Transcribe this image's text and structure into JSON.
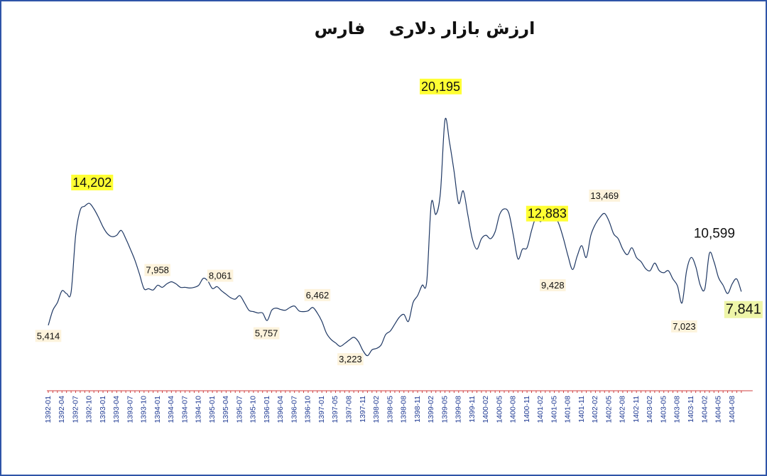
{
  "chart_data": {
    "type": "line",
    "title": "ارزش بازار دلاری    فارس",
    "categories": [
      "1392-01",
      null,
      null,
      "1392-04",
      null,
      null,
      "1392-07",
      null,
      null,
      "1392-10",
      null,
      null,
      "1393-01",
      null,
      null,
      "1393-04",
      null,
      null,
      "1393-07",
      null,
      null,
      "1393-10",
      null,
      null,
      "1394-01",
      null,
      null,
      "1394-04",
      null,
      null,
      "1394-07",
      null,
      null,
      "1394-10",
      null,
      null,
      "1395-01",
      null,
      null,
      "1395-04",
      null,
      null,
      "1395-07",
      null,
      null,
      "1395-10",
      null,
      null,
      "1396-01",
      null,
      null,
      "1396-04",
      null,
      null,
      "1396-07",
      null,
      null,
      "1396-10",
      null,
      null,
      "1397-01",
      null,
      null,
      "1397-05",
      null,
      null,
      "1397-08",
      null,
      null,
      "1397-11",
      null,
      null,
      "1398-02",
      null,
      null,
      "1398-05",
      null,
      null,
      "1398-08",
      null,
      null,
      "1398-11",
      null,
      null,
      "1399-02",
      null,
      null,
      "1399-05",
      null,
      null,
      "1399-08",
      null,
      null,
      "1399-11",
      null,
      null,
      "1400-02",
      null,
      null,
      "1400-05",
      null,
      null,
      "1400-08",
      null,
      null,
      "1400-11",
      null,
      null,
      "1401-02",
      null,
      null,
      "1401-05",
      null,
      null,
      "1401-08",
      null,
      null,
      "1401-11",
      null,
      null,
      "1402-02",
      null,
      null,
      "1402-05",
      null,
      null,
      "1402-08",
      null,
      null,
      "1402-11",
      null,
      null,
      "1403-02",
      null,
      null,
      "1403-05",
      null,
      null,
      "1403-08",
      null,
      null,
      "1403-11",
      null,
      null,
      "1404-02",
      null,
      null,
      "1404-05",
      null,
      null,
      "1404-08",
      null,
      null
    ],
    "values": [
      5414,
      6500,
      7050,
      7900,
      7700,
      7800,
      11900,
      13700,
      14000,
      14202,
      13800,
      13200,
      12500,
      12000,
      11800,
      11900,
      12250,
      11650,
      10900,
      10100,
      9100,
      8050,
      8050,
      7958,
      8300,
      8150,
      8400,
      8550,
      8400,
      8150,
      8150,
      8100,
      8150,
      8300,
      8800,
      8600,
      8061,
      8200,
      7900,
      7650,
      7400,
      7300,
      7550,
      7050,
      6500,
      6400,
      6300,
      6300,
      5757,
      6500,
      6650,
      6550,
      6500,
      6700,
      6800,
      6450,
      6400,
      6462,
      6700,
      6300,
      5700,
      4850,
      4400,
      4150,
      3900,
      4100,
      4350,
      4550,
      4250,
      3600,
      3223,
      3650,
      3750,
      4000,
      4750,
      5000,
      5500,
      6000,
      6200,
      5700,
      7050,
      7550,
      8300,
      8550,
      14200,
      13400,
      14950,
      20195,
      18600,
      16500,
      14200,
      15100,
      13400,
      11650,
      10900,
      11650,
      11900,
      11650,
      12150,
      13400,
      13800,
      13500,
      11900,
      10200,
      10900,
      11000,
      12250,
      13200,
      12883,
      13500,
      13100,
      13300,
      12700,
      11650,
      10400,
      9428,
      10400,
      11150,
      10300,
      11900,
      12700,
      13200,
      13469,
      12900,
      12000,
      11650,
      10900,
      10500,
      11000,
      10300,
      10000,
      9500,
      9350,
      9900,
      9350,
      9200,
      9350,
      8750,
      8250,
      7023,
      9350,
      10300,
      9650,
      8300,
      8050,
      10599,
      10000,
      8850,
      8300,
      7700,
      8400,
      8750,
      7841
    ],
    "value_labels": [
      "5,414",
      null,
      null,
      null,
      null,
      null,
      null,
      null,
      null,
      "14,202",
      null,
      null,
      null,
      null,
      null,
      null,
      null,
      null,
      null,
      null,
      null,
      null,
      null,
      "7,958",
      null,
      null,
      null,
      null,
      null,
      null,
      null,
      null,
      null,
      null,
      null,
      null,
      "8,061",
      null,
      null,
      null,
      null,
      null,
      null,
      null,
      null,
      null,
      null,
      null,
      "5,757",
      null,
      null,
      null,
      null,
      null,
      null,
      null,
      null,
      "6,462",
      null,
      null,
      null,
      null,
      null,
      null,
      null,
      null,
      null,
      null,
      null,
      null,
      "3,223",
      null,
      null,
      null,
      null,
      null,
      null,
      null,
      null,
      null,
      null,
      null,
      null,
      null,
      null,
      null,
      null,
      "20,195",
      null,
      null,
      null,
      null,
      null,
      null,
      null,
      null,
      null,
      null,
      null,
      null,
      null,
      null,
      null,
      null,
      null,
      null,
      null,
      null,
      "12,883",
      null,
      null,
      null,
      null,
      null,
      null,
      "9,428",
      null,
      null,
      null,
      null,
      null,
      null,
      "13,469",
      null,
      null,
      null,
      null,
      null,
      null,
      null,
      null,
      null,
      null,
      null,
      null,
      null,
      null,
      null,
      null,
      "7,023",
      null,
      null,
      null,
      null,
      null,
      "10,599",
      null,
      null,
      null,
      null,
      null,
      null,
      "7,841"
    ],
    "color": "#1f3864",
    "ylim": [
      700,
      22500
    ]
  }
}
